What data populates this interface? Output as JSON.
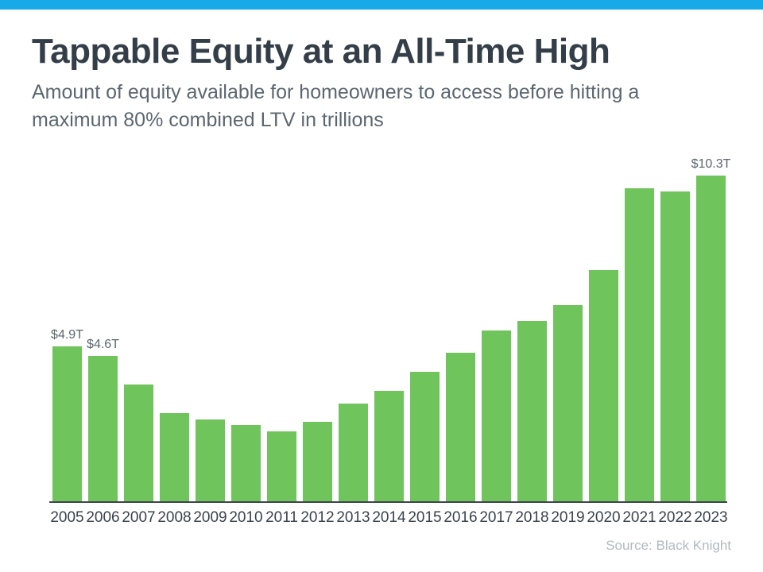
{
  "accent_color": "#18A9E8",
  "header": {
    "title": "Tappable Equity at an All-Time High",
    "subtitle": "Amount of equity available for homeowners to access before hitting a maximum 80% combined LTV in trillions",
    "subtitle_line1": "Amount of equity available for homeowners to access before hitting a",
    "subtitle_line2": "maximum 80% combined LTV in trillions"
  },
  "chart_data": {
    "type": "bar",
    "title": "Tappable Equity at an All-Time High",
    "subtitle": "Amount of equity available for homeowners to access before hitting a maximum 80% combined LTV in trillions",
    "unit": "trillions of dollars",
    "categories": [
      "2005",
      "2006",
      "2007",
      "2008",
      "2009",
      "2010",
      "2011",
      "2012",
      "2013",
      "2014",
      "2015",
      "2016",
      "2017",
      "2018",
      "2019",
      "2020",
      "2021",
      "2022",
      "2023"
    ],
    "values": [
      4.9,
      4.6,
      3.7,
      2.8,
      2.6,
      2.4,
      2.2,
      2.5,
      3.1,
      3.5,
      4.1,
      4.7,
      5.4,
      5.7,
      6.2,
      7.3,
      9.9,
      9.8,
      10.3
    ],
    "point_labels": [
      "$4.9T",
      "$4.6T",
      "",
      "",
      "",
      "",
      "",
      "",
      "",
      "",
      "",
      "",
      "",
      "",
      "",
      "",
      "",
      "",
      "$10.3T"
    ],
    "bar_color": "#70C45C",
    "xlabel": "",
    "ylabel": "",
    "ylim": [
      0,
      10.5
    ],
    "grid": false,
    "legend": false
  },
  "footer": {
    "source": "Source: Black Knight"
  }
}
